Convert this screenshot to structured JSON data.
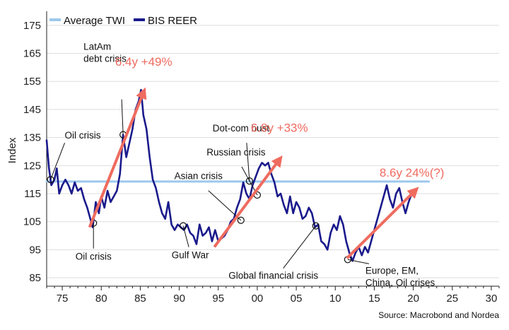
{
  "chart_data": {
    "type": "line",
    "ylabel": "Index",
    "xlabel": "",
    "xlim": [
      1973,
      2031
    ],
    "ylim": [
      82,
      180
    ],
    "x_ticks": [
      {
        "year": 1975,
        "label": "75"
      },
      {
        "year": 1980,
        "label": "80"
      },
      {
        "year": 1985,
        "label": "85"
      },
      {
        "year": 1990,
        "label": "90"
      },
      {
        "year": 1995,
        "label": "95"
      },
      {
        "year": 2000,
        "label": "00"
      },
      {
        "year": 2005,
        "label": "05"
      },
      {
        "year": 2010,
        "label": "10"
      },
      {
        "year": 2015,
        "label": "15"
      },
      {
        "year": 2020,
        "label": "20"
      },
      {
        "year": 2025,
        "label": "25"
      },
      {
        "year": 2030,
        "label": "30"
      }
    ],
    "y_ticks": [
      85,
      95,
      105,
      115,
      125,
      135,
      145,
      155,
      165,
      175
    ],
    "grid": "horizontal",
    "legend": {
      "placement": "top-left",
      "items": [
        {
          "label": "Average TWI",
          "color": "#9cc8ec"
        },
        {
          "label": "BIS REER",
          "color": "#1a1a8c"
        }
      ]
    },
    "series": [
      {
        "name": "Average TWI",
        "color": "#9cc8ec",
        "x": [
          1973.0,
          2022.0
        ],
        "y": [
          119.3,
          119.3
        ]
      },
      {
        "name": "BIS REER",
        "color": "#1a1a8c",
        "x": [
          1973.0,
          1973.3,
          1973.6,
          1974.0,
          1974.3,
          1974.6,
          1975.0,
          1975.4,
          1975.8,
          1976.2,
          1976.6,
          1977.0,
          1977.4,
          1977.8,
          1978.2,
          1978.6,
          1978.9,
          1979.3,
          1979.7,
          1980.0,
          1980.4,
          1980.8,
          1981.2,
          1981.6,
          1982.0,
          1982.4,
          1982.8,
          1983.2,
          1983.6,
          1984.0,
          1984.4,
          1984.8,
          1985.1,
          1985.4,
          1985.8,
          1986.2,
          1986.6,
          1987.0,
          1987.4,
          1987.8,
          1988.2,
          1988.6,
          1989.0,
          1989.4,
          1989.8,
          1990.2,
          1990.6,
          1991.0,
          1991.4,
          1991.8,
          1992.2,
          1992.6,
          1993.0,
          1993.4,
          1993.8,
          1994.2,
          1994.6,
          1995.0,
          1995.4,
          1995.8,
          1996.2,
          1996.6,
          1997.0,
          1997.4,
          1997.8,
          1998.2,
          1998.6,
          1999.0,
          1999.4,
          1999.8,
          2000.2,
          2000.6,
          2001.0,
          2001.4,
          2001.8,
          2002.2,
          2002.6,
          2003.0,
          2003.4,
          2003.8,
          2004.2,
          2004.6,
          2005.0,
          2005.4,
          2005.8,
          2006.2,
          2006.6,
          2007.0,
          2007.4,
          2007.8,
          2008.2,
          2008.6,
          2009.0,
          2009.4,
          2009.8,
          2010.2,
          2010.6,
          2011.0,
          2011.4,
          2011.8,
          2012.2,
          2012.6,
          2013.0,
          2013.4,
          2013.8,
          2014.2,
          2014.6,
          2015.0,
          2015.4,
          2015.8,
          2016.2,
          2016.6,
          2017.0,
          2017.4,
          2017.8,
          2018.2,
          2018.6,
          2019.0,
          2019.4,
          2019.8,
          2020.2
        ],
        "y": [
          134,
          124,
          118,
          120,
          124,
          115,
          118,
          120,
          118,
          115,
          119,
          116,
          117,
          113,
          110,
          106,
          103,
          112,
          108,
          114,
          110,
          116,
          112,
          114,
          116,
          122,
          136,
          128,
          133,
          138,
          145,
          148,
          152,
          143,
          138,
          128,
          120,
          117,
          112,
          108,
          106,
          112,
          104,
          102,
          104,
          103,
          102,
          104,
          101,
          100,
          97,
          104,
          100,
          101,
          103,
          98,
          102,
          98,
          99,
          100,
          102,
          105,
          106,
          110,
          113,
          119,
          115,
          113,
          118,
          121,
          124,
          126,
          125,
          126,
          122,
          119,
          114,
          115,
          111,
          108,
          114,
          108,
          112,
          110,
          106,
          107,
          110,
          108,
          103,
          104,
          98,
          97,
          95,
          101,
          104,
          102,
          107,
          104,
          98,
          94,
          91,
          94,
          96,
          93,
          96,
          94,
          98,
          102,
          106,
          110,
          114,
          118,
          113,
          110,
          115,
          117,
          112,
          108,
          112,
          115,
          116
        ]
      }
    ],
    "event_labels": [
      {
        "text": "Oil crisis",
        "x": 1973.5,
        "y": 120
      },
      {
        "text": "LatAm debt crisis",
        "lines": [
          "LatAm",
          "debt crisis"
        ],
        "x": 1982.8,
        "y": 136
      },
      {
        "text": "Oil crisis",
        "x": 1979.0,
        "y": 104.5
      },
      {
        "text": "Gulf War",
        "x": 1990.5,
        "y": 103.5
      },
      {
        "text": "Dot-com bust",
        "x": 1999.0,
        "y": 119.5
      },
      {
        "text": "Russian crisis",
        "x": 2000.0,
        "y": 114.5
      },
      {
        "text": "Asian crisis",
        "x": 1997.9,
        "y": 105.5
      },
      {
        "text": "Global financial crisis",
        "x": 2007.5,
        "y": 103.5
      },
      {
        "text": "Europe, EM, China, Oil crises",
        "lines": [
          "Europe, EM,",
          "China, Oil crises"
        ],
        "x": 2011.6,
        "y": 91.5
      }
    ],
    "trend_arrows": [
      {
        "label": "6.4y +49%",
        "x_start": 1978.5,
        "y_start": 103,
        "x_end": 1985.4,
        "y_end": 151
      },
      {
        "label": "6.8y +33%",
        "x_start": 1994.5,
        "y_start": 96,
        "x_end": 2002.8,
        "y_end": 127
      },
      {
        "label": "8.6y 24%(?)",
        "x_start": 2011.5,
        "y_start": 92,
        "x_end": 2020.2,
        "y_end": 116
      }
    ],
    "source": "Source: Macrobond and Nordea"
  }
}
